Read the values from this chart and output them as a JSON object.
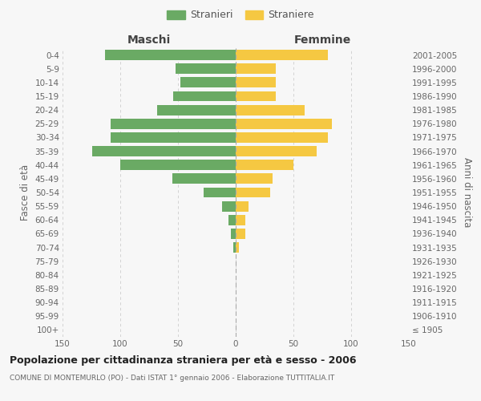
{
  "age_groups": [
    "100+",
    "95-99",
    "90-94",
    "85-89",
    "80-84",
    "75-79",
    "70-74",
    "65-69",
    "60-64",
    "55-59",
    "50-54",
    "45-49",
    "40-44",
    "35-39",
    "30-34",
    "25-29",
    "20-24",
    "15-19",
    "10-14",
    "5-9",
    "0-4"
  ],
  "birth_years": [
    "≤ 1905",
    "1906-1910",
    "1911-1915",
    "1916-1920",
    "1921-1925",
    "1926-1930",
    "1931-1935",
    "1936-1940",
    "1941-1945",
    "1946-1950",
    "1951-1955",
    "1956-1960",
    "1961-1965",
    "1966-1970",
    "1971-1975",
    "1976-1980",
    "1981-1985",
    "1986-1990",
    "1991-1995",
    "1996-2000",
    "2001-2005"
  ],
  "maschi": [
    0,
    0,
    0,
    0,
    0,
    0,
    2,
    4,
    6,
    12,
    28,
    55,
    100,
    124,
    108,
    108,
    68,
    54,
    48,
    52,
    113
  ],
  "femmine": [
    0,
    0,
    0,
    0,
    0,
    0,
    3,
    8,
    8,
    11,
    30,
    32,
    50,
    70,
    80,
    83,
    60,
    35,
    35,
    35,
    80
  ],
  "maschi_color": "#6aaa64",
  "femmine_color": "#f5c842",
  "background_color": "#f7f7f7",
  "grid_color": "#cccccc",
  "title": "Popolazione per cittadinanza straniera per età e sesso - 2006",
  "subtitle": "COMUNE DI MONTEMURLO (PO) - Dati ISTAT 1° gennaio 2006 - Elaborazione TUTTITALIA.IT",
  "ylabel_left": "Fasce di età",
  "ylabel_right": "Anni di nascita",
  "xlim": 150,
  "legend_stranieri": "Stranieri",
  "legend_straniere": "Straniere",
  "maschi_label": "Maschi",
  "femmine_label": "Femmine"
}
